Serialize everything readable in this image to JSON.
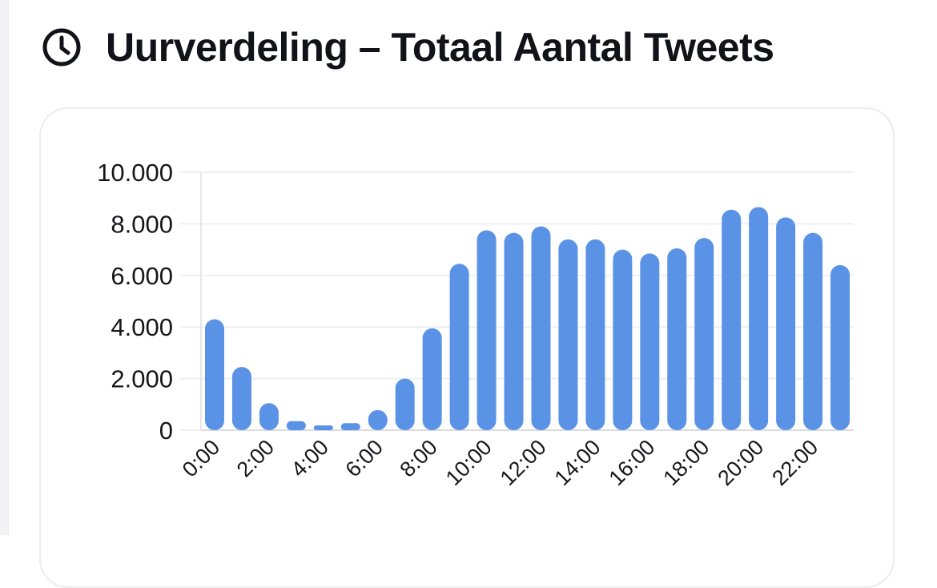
{
  "header": {
    "title": "Uurverdeling – Totaal Aantal Tweets",
    "icon": "clock-icon"
  },
  "colors": {
    "bar": "#5a93e6",
    "grid": "#efeff3",
    "text": "#16161d"
  },
  "chart_data": {
    "type": "bar",
    "title": "",
    "xlabel": "",
    "ylabel": "",
    "ylim": [
      0,
      10000
    ],
    "yticks": [
      "0",
      "2.000",
      "4.000",
      "6.000",
      "8.000",
      "10.000"
    ],
    "ytick_values": [
      0,
      2000,
      4000,
      6000,
      8000,
      10000
    ],
    "grid": true,
    "categories": [
      "0:00",
      "1:00",
      "2:00",
      "3:00",
      "4:00",
      "5:00",
      "6:00",
      "7:00",
      "8:00",
      "9:00",
      "10:00",
      "11:00",
      "12:00",
      "13:00",
      "14:00",
      "15:00",
      "16:00",
      "17:00",
      "18:00",
      "19:00",
      "20:00",
      "21:00",
      "22:00",
      "23:00"
    ],
    "xtick_labels": [
      "0:00",
      "",
      "2:00",
      "",
      "4:00",
      "",
      "6:00",
      "",
      "8:00",
      "",
      "10:00",
      "",
      "12:00",
      "",
      "14:00",
      "",
      "16:00",
      "",
      "18:00",
      "",
      "20:00",
      "",
      "22:00",
      ""
    ],
    "values": [
      4300,
      2450,
      1050,
      350,
      180,
      270,
      780,
      2000,
      3950,
      6450,
      7750,
      7650,
      7900,
      7400,
      7400,
      7000,
      6850,
      7050,
      7450,
      8550,
      8650,
      8250,
      7650,
      6400
    ]
  }
}
